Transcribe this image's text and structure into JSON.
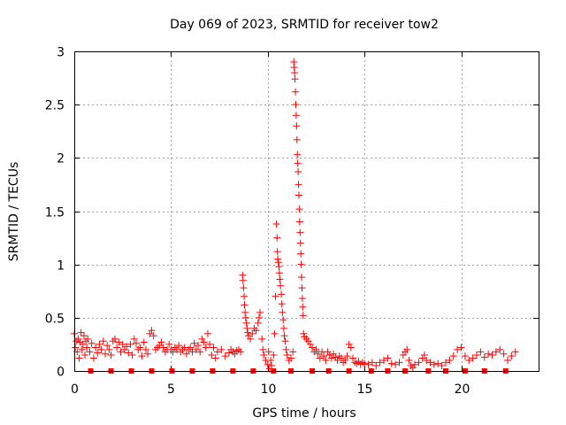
{
  "chart_data": {
    "type": "scatter",
    "title": "Day 069 of 2023, SRMTID for receiver tow2",
    "xlabel": "GPS time / hours",
    "ylabel": "SRMTID / TECUs",
    "xlim": [
      0,
      24
    ],
    "ylim": [
      0,
      3
    ],
    "xticks": [
      0,
      5,
      10,
      15,
      20
    ],
    "yticks": [
      0,
      0.5,
      1,
      1.5,
      2,
      2.5,
      3
    ],
    "xtick_labels": [
      "0",
      "5",
      "10",
      "15",
      "20"
    ],
    "ytick_labels": [
      "0",
      "0.5",
      "1",
      "1.5",
      "2",
      "2.5",
      "3"
    ],
    "grid": true,
    "marker_color": "#ff0000",
    "series": [
      {
        "name": "SRMTID",
        "marker": "plus",
        "points": [
          [
            0.0,
            0.35
          ],
          [
            0.05,
            0.22
          ],
          [
            0.1,
            0.28
          ],
          [
            0.15,
            0.18
          ],
          [
            0.2,
            0.3
          ],
          [
            0.25,
            0.12
          ],
          [
            0.3,
            0.27
          ],
          [
            0.35,
            0.36
          ],
          [
            0.4,
            0.2
          ],
          [
            0.45,
            0.25
          ],
          [
            0.5,
            0.33
          ],
          [
            0.55,
            0.15
          ],
          [
            0.6,
            0.28
          ],
          [
            0.65,
            0.22
          ],
          [
            0.7,
            0.3
          ],
          [
            0.8,
            0.18
          ],
          [
            0.9,
            0.26
          ],
          [
            1.0,
            0.12
          ],
          [
            1.1,
            0.22
          ],
          [
            1.2,
            0.17
          ],
          [
            1.3,
            0.25
          ],
          [
            1.4,
            0.2
          ],
          [
            1.5,
            0.28
          ],
          [
            1.6,
            0.16
          ],
          [
            1.7,
            0.24
          ],
          [
            1.8,
            0.2
          ],
          [
            1.9,
            0.15
          ],
          [
            2.0,
            0.28
          ],
          [
            2.1,
            0.3
          ],
          [
            2.2,
            0.22
          ],
          [
            2.3,
            0.27
          ],
          [
            2.4,
            0.18
          ],
          [
            2.5,
            0.25
          ],
          [
            2.6,
            0.2
          ],
          [
            2.7,
            0.23
          ],
          [
            2.8,
            0.17
          ],
          [
            2.9,
            0.25
          ],
          [
            3.0,
            0.15
          ],
          [
            3.1,
            0.3
          ],
          [
            3.2,
            0.26
          ],
          [
            3.3,
            0.2
          ],
          [
            3.4,
            0.22
          ],
          [
            3.5,
            0.14
          ],
          [
            3.6,
            0.27
          ],
          [
            3.7,
            0.2
          ],
          [
            3.8,
            0.16
          ],
          [
            3.9,
            0.35
          ],
          [
            4.0,
            0.38
          ],
          [
            4.1,
            0.33
          ],
          [
            4.2,
            0.2
          ],
          [
            4.3,
            0.22
          ],
          [
            4.4,
            0.24
          ],
          [
            4.5,
            0.27
          ],
          [
            4.6,
            0.22
          ],
          [
            4.7,
            0.18
          ],
          [
            4.8,
            0.2
          ],
          [
            4.9,
            0.25
          ],
          [
            5.0,
            0.2
          ],
          [
            5.1,
            0.18
          ],
          [
            5.2,
            0.22
          ],
          [
            5.3,
            0.2
          ],
          [
            5.4,
            0.24
          ],
          [
            5.5,
            0.18
          ],
          [
            5.6,
            0.2
          ],
          [
            5.7,
            0.22
          ],
          [
            5.8,
            0.16
          ],
          [
            5.9,
            0.2
          ],
          [
            6.0,
            0.22
          ],
          [
            6.1,
            0.18
          ],
          [
            6.2,
            0.26
          ],
          [
            6.3,
            0.2
          ],
          [
            6.4,
            0.24
          ],
          [
            6.5,
            0.18
          ],
          [
            6.6,
            0.3
          ],
          [
            6.7,
            0.27
          ],
          [
            6.8,
            0.22
          ],
          [
            6.9,
            0.35
          ],
          [
            7.0,
            0.25
          ],
          [
            7.1,
            0.15
          ],
          [
            7.2,
            0.22
          ],
          [
            7.3,
            0.12
          ],
          [
            7.4,
            0.18
          ],
          [
            7.6,
            0.2
          ],
          [
            7.8,
            0.14
          ],
          [
            8.0,
            0.17
          ],
          [
            8.1,
            0.2
          ],
          [
            8.2,
            0.18
          ],
          [
            8.3,
            0.16
          ],
          [
            8.4,
            0.19
          ],
          [
            8.5,
            0.2
          ],
          [
            8.6,
            0.18
          ],
          [
            8.7,
            0.9
          ],
          [
            8.72,
            0.85
          ],
          [
            8.75,
            0.78
          ],
          [
            8.78,
            0.7
          ],
          [
            8.8,
            0.62
          ],
          [
            8.83,
            0.55
          ],
          [
            8.86,
            0.5
          ],
          [
            8.9,
            0.45
          ],
          [
            8.93,
            0.4
          ],
          [
            8.96,
            0.36
          ],
          [
            9.0,
            0.33
          ],
          [
            9.1,
            0.3
          ],
          [
            9.2,
            0.35
          ],
          [
            9.3,
            0.4
          ],
          [
            9.4,
            0.38
          ],
          [
            9.5,
            0.45
          ],
          [
            9.55,
            0.5
          ],
          [
            9.6,
            0.55
          ],
          [
            9.7,
            0.3
          ],
          [
            9.75,
            0.2
          ],
          [
            9.8,
            0.15
          ],
          [
            9.9,
            0.1
          ],
          [
            10.0,
            0.06
          ],
          [
            10.05,
            0.18
          ],
          [
            10.1,
            0.02
          ],
          [
            10.15,
            0.1
          ],
          [
            10.2,
            0.05
          ],
          [
            10.3,
            0.15
          ],
          [
            10.35,
            0.35
          ],
          [
            10.4,
            0.7
          ],
          [
            10.45,
            1.38
          ],
          [
            10.48,
            1.25
          ],
          [
            10.5,
            1.12
          ],
          [
            10.52,
            1.05
          ],
          [
            10.55,
            1.02
          ],
          [
            10.58,
            0.98
          ],
          [
            10.6,
            0.92
          ],
          [
            10.63,
            0.86
          ],
          [
            10.66,
            0.8
          ],
          [
            10.7,
            0.72
          ],
          [
            10.73,
            0.63
          ],
          [
            10.76,
            0.55
          ],
          [
            10.8,
            0.48
          ],
          [
            10.83,
            0.4
          ],
          [
            10.86,
            0.33
          ],
          [
            10.9,
            0.28
          ],
          [
            10.95,
            0.2
          ],
          [
            11.0,
            0.15
          ],
          [
            11.1,
            0.1
          ],
          [
            11.2,
            0.12
          ],
          [
            11.3,
            0.18
          ],
          [
            11.35,
            2.9
          ],
          [
            11.37,
            2.85
          ],
          [
            11.39,
            2.8
          ],
          [
            11.41,
            2.74
          ],
          [
            11.43,
            2.62
          ],
          [
            11.45,
            2.5
          ],
          [
            11.47,
            2.4
          ],
          [
            11.49,
            2.3
          ],
          [
            11.51,
            2.17
          ],
          [
            11.53,
            2.03
          ],
          [
            11.55,
            1.95
          ],
          [
            11.57,
            1.87
          ],
          [
            11.59,
            1.75
          ],
          [
            11.61,
            1.65
          ],
          [
            11.63,
            1.52
          ],
          [
            11.65,
            1.4
          ],
          [
            11.67,
            1.3
          ],
          [
            11.69,
            1.2
          ],
          [
            11.71,
            1.1
          ],
          [
            11.73,
            1.0
          ],
          [
            11.75,
            0.88
          ],
          [
            11.77,
            0.78
          ],
          [
            11.79,
            0.68
          ],
          [
            11.81,
            0.6
          ],
          [
            11.83,
            0.52
          ],
          [
            11.85,
            0.35
          ],
          [
            11.9,
            0.32
          ],
          [
            12.0,
            0.3
          ],
          [
            12.1,
            0.28
          ],
          [
            12.2,
            0.25
          ],
          [
            12.3,
            0.22
          ],
          [
            12.4,
            0.18
          ],
          [
            12.5,
            0.2
          ],
          [
            12.6,
            0.16
          ],
          [
            12.7,
            0.12
          ],
          [
            12.8,
            0.18
          ],
          [
            12.9,
            0.14
          ],
          [
            13.0,
            0.1
          ],
          [
            13.1,
            0.18
          ],
          [
            13.2,
            0.15
          ],
          [
            13.3,
            0.12
          ],
          [
            13.4,
            0.16
          ],
          [
            13.5,
            0.13
          ],
          [
            13.6,
            0.1
          ],
          [
            13.7,
            0.14
          ],
          [
            13.8,
            0.12
          ],
          [
            13.9,
            0.08
          ],
          [
            14.0,
            0.1
          ],
          [
            14.1,
            0.14
          ],
          [
            14.2,
            0.25
          ],
          [
            14.3,
            0.22
          ],
          [
            14.4,
            0.12
          ],
          [
            14.5,
            0.08
          ],
          [
            14.6,
            0.07
          ],
          [
            14.7,
            0.09
          ],
          [
            14.8,
            0.06
          ],
          [
            14.9,
            0.08
          ],
          [
            15.0,
            0.07
          ],
          [
            15.2,
            0.06
          ],
          [
            15.4,
            0.08
          ],
          [
            15.6,
            0.05
          ],
          [
            15.8,
            0.08
          ],
          [
            16.0,
            0.1
          ],
          [
            16.2,
            0.12
          ],
          [
            16.4,
            0.07
          ],
          [
            16.6,
            0.06
          ],
          [
            16.8,
            0.08
          ],
          [
            17.0,
            0.15
          ],
          [
            17.1,
            0.18
          ],
          [
            17.2,
            0.2
          ],
          [
            17.3,
            0.1
          ],
          [
            17.4,
            0.05
          ],
          [
            17.5,
            0.03
          ],
          [
            17.6,
            0.06
          ],
          [
            17.8,
            0.08
          ],
          [
            18.0,
            0.12
          ],
          [
            18.1,
            0.15
          ],
          [
            18.2,
            0.1
          ],
          [
            18.4,
            0.08
          ],
          [
            18.6,
            0.06
          ],
          [
            18.8,
            0.07
          ],
          [
            19.0,
            0.05
          ],
          [
            19.2,
            0.08
          ],
          [
            19.4,
            0.1
          ],
          [
            19.6,
            0.14
          ],
          [
            19.8,
            0.2
          ],
          [
            20.0,
            0.22
          ],
          [
            20.2,
            0.14
          ],
          [
            20.4,
            0.1
          ],
          [
            20.6,
            0.12
          ],
          [
            20.8,
            0.15
          ],
          [
            21.0,
            0.18
          ],
          [
            21.2,
            0.13
          ],
          [
            21.4,
            0.16
          ],
          [
            21.6,
            0.15
          ],
          [
            21.8,
            0.18
          ],
          [
            22.0,
            0.2
          ],
          [
            22.2,
            0.16
          ],
          [
            22.4,
            0.1
          ],
          [
            22.6,
            0.14
          ],
          [
            22.8,
            0.18
          ]
        ]
      },
      {
        "name": "zero-level",
        "marker": "square",
        "points": [
          [
            0.85,
            0
          ],
          [
            1.9,
            0
          ],
          [
            2.95,
            0
          ],
          [
            4.0,
            0
          ],
          [
            5.05,
            0
          ],
          [
            6.1,
            0
          ],
          [
            7.15,
            0
          ],
          [
            8.2,
            0
          ],
          [
            9.25,
            0
          ],
          [
            10.3,
            0
          ],
          [
            11.2,
            0
          ],
          [
            12.3,
            0
          ],
          [
            13.15,
            0
          ],
          [
            14.2,
            0
          ],
          [
            15.35,
            0
          ],
          [
            16.2,
            0
          ],
          [
            17.1,
            0
          ],
          [
            18.3,
            0
          ],
          [
            19.2,
            0
          ],
          [
            20.2,
            0
          ],
          [
            21.2,
            0
          ],
          [
            22.3,
            0
          ]
        ]
      }
    ]
  }
}
